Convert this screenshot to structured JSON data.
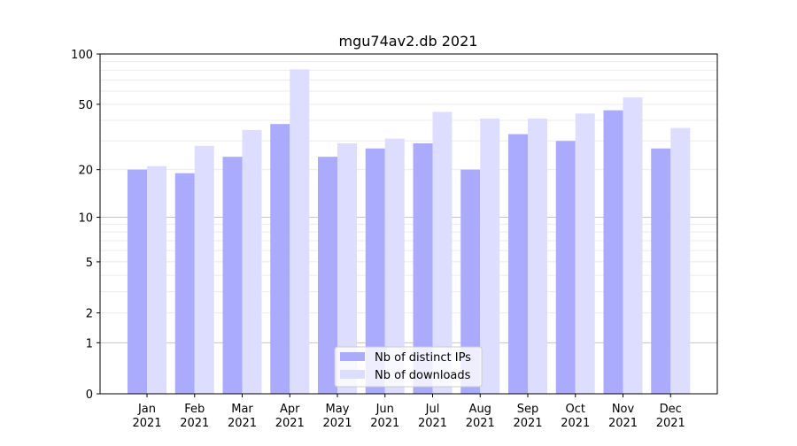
{
  "chart_data": {
    "type": "bar",
    "title": "mgu74av2.db 2021",
    "xlabel": "",
    "ylabel": "",
    "yscale": "log(1+y)",
    "ylim": [
      0,
      100
    ],
    "yticks": [
      0,
      1,
      2,
      5,
      10,
      20,
      50,
      100
    ],
    "grid": true,
    "legend_placement": "lower center",
    "categories": [
      "Jan\n2021",
      "Feb\n2021",
      "Mar\n2021",
      "Apr\n2021",
      "May\n2021",
      "Jun\n2021",
      "Jul\n2021",
      "Aug\n2021",
      "Sep\n2021",
      "Oct\n2021",
      "Nov\n2021",
      "Dec\n2021"
    ],
    "series": [
      {
        "name": "Nb of distinct IPs",
        "color": "#aaaaff",
        "values": [
          20,
          19,
          24,
          38,
          24,
          27,
          29,
          20,
          33,
          30,
          46,
          27
        ]
      },
      {
        "name": "Nb of downloads",
        "color": "#ddddff",
        "values": [
          21,
          28,
          35,
          81,
          29,
          31,
          45,
          41,
          41,
          44,
          55,
          36
        ]
      }
    ]
  }
}
